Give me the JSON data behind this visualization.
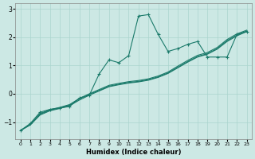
{
  "xlabel": "Humidex (Indice chaleur)",
  "bg_color": "#cce8e4",
  "grid_color": "#aad4ce",
  "line_color": "#1a7a6a",
  "xlim": [
    -0.5,
    23.5
  ],
  "ylim": [
    -1.6,
    3.2
  ],
  "yticks": [
    -1,
    0,
    1,
    2,
    3
  ],
  "xticks": [
    0,
    1,
    2,
    3,
    4,
    5,
    6,
    7,
    8,
    9,
    10,
    11,
    12,
    13,
    14,
    15,
    16,
    17,
    18,
    19,
    20,
    21,
    22,
    23
  ],
  "line_zigzag_x": [
    0,
    1,
    2,
    3,
    4,
    5,
    6,
    7,
    8,
    9,
    10,
    11,
    12,
    13,
    14,
    15,
    16,
    17,
    18,
    19,
    20,
    21,
    22,
    23
  ],
  "line_zigzag_y": [
    -1.3,
    -1.05,
    -0.65,
    -0.55,
    -0.5,
    -0.45,
    -0.15,
    -0.05,
    0.7,
    1.2,
    1.1,
    1.35,
    2.75,
    2.8,
    2.1,
    1.5,
    1.6,
    1.75,
    1.85,
    1.3,
    1.3,
    1.3,
    2.1,
    2.2
  ],
  "line_diag1_x": [
    0,
    1,
    2,
    3,
    4,
    5,
    6,
    7,
    8,
    9,
    10,
    11,
    12,
    13,
    14,
    15,
    16,
    17,
    18,
    19,
    20,
    21,
    22,
    23
  ],
  "line_diag1_y": [
    -1.3,
    -1.1,
    -0.75,
    -0.6,
    -0.52,
    -0.42,
    -0.22,
    -0.05,
    0.1,
    0.25,
    0.32,
    0.38,
    0.42,
    0.48,
    0.58,
    0.72,
    0.92,
    1.12,
    1.3,
    1.4,
    1.58,
    1.85,
    2.05,
    2.2
  ],
  "line_diag2_x": [
    0,
    1,
    2,
    3,
    4,
    5,
    6,
    7,
    8,
    9,
    10,
    11,
    12,
    13,
    14,
    15,
    16,
    17,
    18,
    19,
    20,
    21,
    22,
    23
  ],
  "line_diag2_y": [
    -1.3,
    -1.1,
    -0.72,
    -0.58,
    -0.5,
    -0.4,
    -0.18,
    -0.02,
    0.12,
    0.27,
    0.34,
    0.4,
    0.44,
    0.5,
    0.6,
    0.74,
    0.94,
    1.14,
    1.32,
    1.42,
    1.6,
    1.88,
    2.08,
    2.22
  ],
  "line_diag3_x": [
    0,
    1,
    2,
    3,
    4,
    5,
    6,
    7,
    8,
    9,
    10,
    11,
    12,
    13,
    14,
    15,
    16,
    17,
    18,
    19,
    20,
    21,
    22,
    23
  ],
  "line_diag3_y": [
    -1.3,
    -1.08,
    -0.7,
    -0.56,
    -0.48,
    -0.38,
    -0.16,
    0.0,
    0.15,
    0.3,
    0.37,
    0.43,
    0.47,
    0.53,
    0.63,
    0.77,
    0.98,
    1.18,
    1.36,
    1.46,
    1.64,
    1.92,
    2.12,
    2.25
  ]
}
